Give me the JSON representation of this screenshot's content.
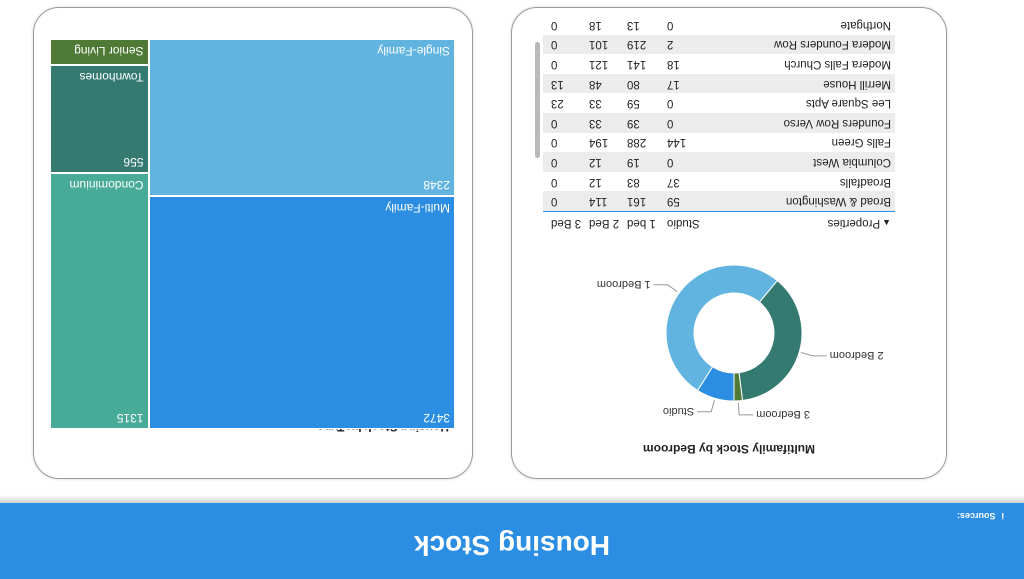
{
  "header": {
    "title": "Housing Stock",
    "sources_label": "Sources:",
    "info_glyph": "i"
  },
  "multifamily": {
    "title": "Multifamily Stock by Bedroom",
    "table": {
      "columns": [
        "Properties",
        "Studio",
        "1 bed",
        "2 Bed",
        "3 Bed"
      ],
      "sort_indicator": "▲",
      "rows": [
        [
          "Broad & Washington",
          "59",
          "161",
          "114",
          "0"
        ],
        [
          "Broadfalls",
          "37",
          "83",
          "12",
          "0"
        ],
        [
          "Columbia West",
          "0",
          "19",
          "12",
          "0"
        ],
        [
          "Falls Green",
          "144",
          "288",
          "194",
          "0"
        ],
        [
          "Founders Row Verso",
          "0",
          "39",
          "33",
          "0"
        ],
        [
          "Lee Square Apts",
          "0",
          "59",
          "33",
          "23"
        ],
        [
          "Merrill House",
          "17",
          "80",
          "48",
          "13"
        ],
        [
          "Modera Falls Church",
          "18",
          "141",
          "121",
          "0"
        ],
        [
          "Modera Founders Row",
          "2",
          "219",
          "101",
          "0"
        ],
        [
          "Northgate",
          "0",
          "13",
          "18",
          "0"
        ]
      ]
    }
  },
  "chart_data": [
    {
      "type": "pie",
      "title": "Multifamily Stock by Bedroom",
      "categories": [
        "Studio",
        "1 Bedroom",
        "2 Bedroom",
        "3 Bedroom"
      ],
      "values": [
        9,
        52,
        37,
        2
      ],
      "colors": [
        "#2b8ee3",
        "#62b4e0",
        "#347a70",
        "#4f7a36"
      ]
    },
    {
      "type": "treemap",
      "title": "Housing Stock by Type",
      "categories": [
        "Multi-Family",
        "Single-Family",
        "Condominium",
        "Townhomes",
        "Senior Living"
      ],
      "values": [
        3472,
        2348,
        1315,
        556,
        0
      ],
      "value_labels": [
        "3472",
        "2348",
        "1315",
        "556",
        ""
      ],
      "colors": [
        "#2b8ee3",
        "#62b4e0",
        "#48ab98",
        "#347a70",
        "#4f7a36"
      ]
    }
  ]
}
